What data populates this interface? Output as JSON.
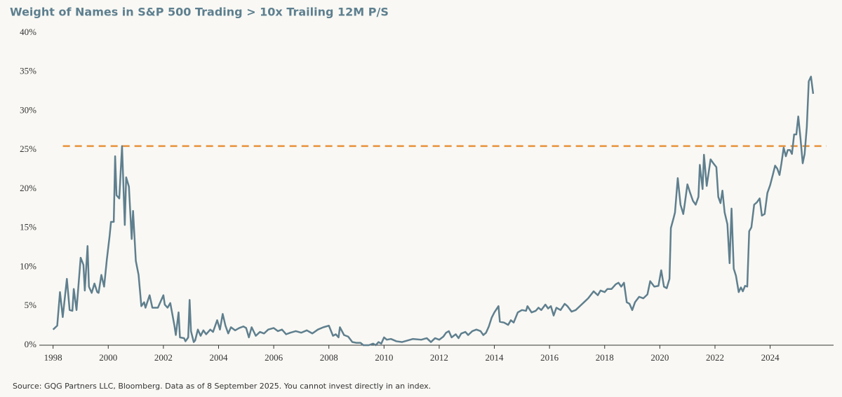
{
  "chart_data": {
    "type": "line",
    "title": "Weight of Names in S&P 500 Trading > 10x Trailing 12M P/S",
    "source": "Source: GQG Partners LLC, Bloomberg. Data as of 8 September 2025. You cannot invest directly in an index.",
    "x": [
      1998.0,
      1998.15,
      1998.25,
      1998.35,
      1998.5,
      1998.6,
      1998.7,
      1998.75,
      1998.85,
      1999.0,
      1999.1,
      1999.15,
      1999.25,
      1999.3,
      1999.4,
      1999.5,
      1999.6,
      1999.65,
      1999.75,
      1999.85,
      1999.95,
      2000.05,
      2000.1,
      2000.2,
      2000.25,
      2000.3,
      2000.4,
      2000.5,
      2000.6,
      2000.65,
      2000.75,
      2000.85,
      2000.9,
      2001.0,
      2001.1,
      2001.2,
      2001.3,
      2001.35,
      2001.5,
      2001.6,
      2001.8,
      2002.0,
      2002.05,
      2002.15,
      2002.25,
      2002.4,
      2002.45,
      2002.55,
      2002.6,
      2002.75,
      2002.8,
      2002.9,
      2002.95,
      2003.0,
      2003.1,
      2003.15,
      2003.25,
      2003.35,
      2003.45,
      2003.55,
      2003.7,
      2003.8,
      2003.95,
      2004.05,
      2004.15,
      2004.25,
      2004.35,
      2004.45,
      2004.6,
      2004.75,
      2004.9,
      2005.0,
      2005.1,
      2005.2,
      2005.35,
      2005.5,
      2005.65,
      2005.8,
      2006.0,
      2006.15,
      2006.3,
      2006.45,
      2006.6,
      2006.8,
      2007.0,
      2007.2,
      2007.4,
      2007.6,
      2007.8,
      2008.0,
      2008.15,
      2008.25,
      2008.35,
      2008.4,
      2008.55,
      2008.7,
      2008.85,
      2009.0,
      2009.15,
      2009.25,
      2009.45,
      2009.6,
      2009.7,
      2009.8,
      2009.9,
      2010.0,
      2010.1,
      2010.25,
      2010.45,
      2010.65,
      2010.85,
      2011.05,
      2011.35,
      2011.55,
      2011.7,
      2011.85,
      2012.0,
      2012.15,
      2012.25,
      2012.35,
      2012.45,
      2012.6,
      2012.7,
      2012.8,
      2012.95,
      2013.05,
      2013.2,
      2013.35,
      2013.5,
      2013.6,
      2013.7,
      2013.8,
      2013.9,
      2014.0,
      2014.15,
      2014.2,
      2014.35,
      2014.5,
      2014.6,
      2014.7,
      2014.85,
      2015.0,
      2015.15,
      2015.2,
      2015.35,
      2015.5,
      2015.6,
      2015.7,
      2015.85,
      2015.95,
      2016.05,
      2016.15,
      2016.25,
      2016.4,
      2016.55,
      2016.65,
      2016.8,
      2016.95,
      2017.1,
      2017.25,
      2017.4,
      2017.6,
      2017.75,
      2017.85,
      2018.0,
      2018.1,
      2018.25,
      2018.4,
      2018.5,
      2018.6,
      2018.7,
      2018.8,
      2018.9,
      2019.0,
      2019.1,
      2019.25,
      2019.4,
      2019.55,
      2019.65,
      2019.8,
      2019.95,
      2020.05,
      2020.15,
      2020.25,
      2020.35,
      2020.4,
      2020.5,
      2020.55,
      2020.65,
      2020.75,
      2020.85,
      2020.9,
      2021.0,
      2021.1,
      2021.2,
      2021.3,
      2021.4,
      2021.45,
      2021.55,
      2021.6,
      2021.7,
      2021.84,
      2021.94,
      2022.05,
      2022.12,
      2022.2,
      2022.27,
      2022.35,
      2022.45,
      2022.53,
      2022.6,
      2022.68,
      2022.76,
      2022.86,
      2022.94,
      2023.01,
      2023.09,
      2023.17,
      2023.24,
      2023.32,
      2023.42,
      2023.52,
      2023.62,
      2023.7,
      2023.8,
      2023.9,
      2024.0,
      2024.11,
      2024.18,
      2024.26,
      2024.34,
      2024.41,
      2024.49,
      2024.57,
      2024.64,
      2024.72,
      2024.79,
      2024.87,
      2024.95,
      2025.02,
      2025.1,
      2025.18,
      2025.25,
      2025.33,
      2025.4,
      2025.48,
      2025.56
    ],
    "series": [
      {
        "color": "#5f7f8e",
        "values": [
          2.0,
          2.5,
          6.8,
          3.6,
          8.5,
          4.5,
          4.4,
          7.2,
          4.5,
          11.2,
          10.3,
          7.0,
          12.7,
          7.5,
          6.7,
          7.9,
          6.8,
          6.7,
          9.0,
          7.5,
          11.0,
          14.0,
          15.8,
          15.8,
          24.2,
          19.2,
          18.8,
          25.5,
          15.4,
          21.5,
          20.3,
          13.6,
          17.2,
          10.8,
          9.0,
          5.0,
          5.5,
          4.8,
          6.4,
          4.8,
          4.8,
          6.4,
          5.2,
          4.8,
          5.4,
          2.5,
          1.3,
          4.2,
          1.0,
          0.9,
          0.5,
          1.0,
          5.8,
          1.8,
          0.4,
          0.6,
          2.0,
          1.2,
          1.9,
          1.4,
          2.0,
          1.7,
          3.2,
          2.0,
          4.0,
          2.5,
          1.5,
          2.3,
          1.9,
          2.2,
          2.4,
          2.2,
          1.0,
          2.3,
          1.2,
          1.7,
          1.5,
          2.0,
          2.2,
          1.8,
          2.0,
          1.4,
          1.6,
          1.8,
          1.6,
          1.9,
          1.5,
          2.0,
          2.3,
          2.5,
          1.2,
          1.4,
          1.0,
          2.3,
          1.3,
          1.1,
          0.4,
          0.3,
          0.3,
          0.0,
          0.0,
          0.2,
          0.0,
          0.4,
          0.2,
          1.0,
          0.7,
          0.8,
          0.5,
          0.4,
          0.6,
          0.8,
          0.7,
          0.9,
          0.4,
          0.9,
          0.7,
          1.1,
          1.6,
          1.8,
          1.0,
          1.4,
          0.9,
          1.5,
          1.7,
          1.3,
          1.8,
          2.0,
          1.8,
          1.3,
          1.6,
          2.4,
          3.5,
          4.2,
          5.0,
          3.0,
          2.9,
          2.6,
          3.2,
          2.9,
          4.2,
          4.5,
          4.4,
          5.0,
          4.2,
          4.4,
          4.8,
          4.5,
          5.2,
          4.7,
          5.0,
          3.8,
          4.8,
          4.5,
          5.3,
          5.0,
          4.3,
          4.5,
          5.0,
          5.5,
          6.0,
          6.9,
          6.4,
          7.0,
          6.8,
          7.2,
          7.2,
          7.8,
          8.0,
          7.5,
          8.0,
          5.5,
          5.3,
          4.5,
          5.5,
          6.2,
          6.0,
          6.5,
          8.2,
          7.5,
          7.6,
          9.6,
          7.5,
          7.3,
          8.5,
          15.0,
          16.3,
          17.0,
          21.4,
          18.0,
          16.8,
          18.0,
          20.6,
          19.5,
          18.5,
          18.0,
          19.0,
          23.1,
          20.0,
          24.4,
          20.4,
          23.8,
          23.3,
          22.8,
          19.0,
          18.2,
          19.8,
          17.0,
          15.5,
          10.5,
          17.5,
          9.8,
          8.9,
          6.8,
          7.4,
          6.9,
          7.6,
          7.5,
          14.6,
          15.1,
          18.0,
          18.3,
          18.8,
          16.6,
          16.8,
          19.5,
          20.5,
          22.0,
          23.0,
          22.6,
          21.8,
          23.3,
          25.3,
          24.2,
          25.0,
          25.0,
          24.5,
          27.0,
          27.0,
          29.3,
          26.5,
          23.3,
          24.5,
          28.0,
          33.8,
          34.4,
          32.2
        ]
      }
    ],
    "reference_line": {
      "value": 25.5,
      "color": "#e8923a"
    },
    "xlim": [
      1997.5,
      2026.3
    ],
    "xticks": [
      1998,
      2000,
      2002,
      2004,
      2006,
      2008,
      2010,
      2012,
      2014,
      2016,
      2018,
      2020,
      2022,
      2024
    ],
    "ylim": [
      0,
      40
    ],
    "yticks": [
      {
        "value": 0,
        "label": "0%"
      },
      {
        "value": 5,
        "label": "5%"
      },
      {
        "value": 10,
        "label": "10%"
      },
      {
        "value": 15,
        "label": "15%"
      },
      {
        "value": 20,
        "label": "20%"
      },
      {
        "value": 25,
        "label": "25%"
      },
      {
        "value": 30,
        "label": "30%"
      },
      {
        "value": 35,
        "label": "35%"
      },
      {
        "value": 40,
        "label": "40%"
      }
    ],
    "grid": false
  }
}
